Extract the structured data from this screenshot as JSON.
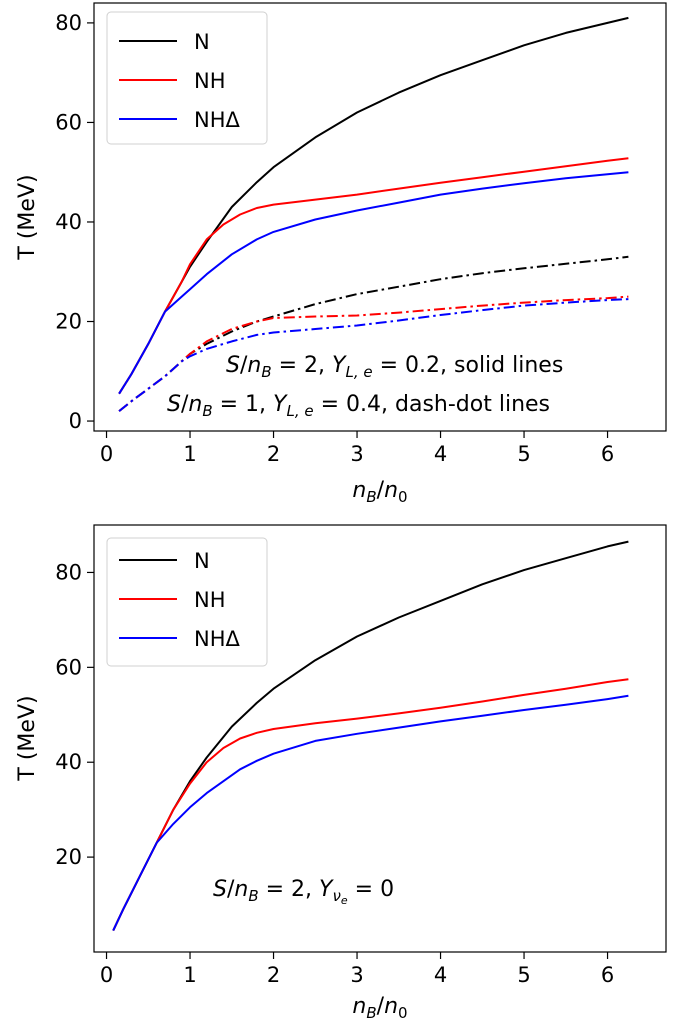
{
  "chart_data": [
    {
      "type": "line",
      "xlabel": "n_B/n_0",
      "ylabel": "T (MeV)",
      "xlim": [
        -0.15,
        6.7
      ],
      "ylim": [
        -2,
        84
      ],
      "xticks": [
        0,
        1,
        2,
        3,
        4,
        5,
        6
      ],
      "yticks": [
        0,
        20,
        40,
        60,
        80
      ],
      "legend_position": "top-left",
      "legend": [
        "N",
        "NH",
        "NHΔ"
      ],
      "annotations": [
        "S/n_B = 2, Y_{L,e} = 0.2, solid lines",
        "S/n_B = 1, Y_{L,e} = 0.4, dash-dot lines"
      ],
      "series": [
        {
          "name": "N",
          "color": "#000000",
          "style": "solid",
          "x": [
            0.15,
            0.3,
            0.5,
            0.7,
            0.9,
            1.0,
            1.2,
            1.5,
            1.8,
            2.0,
            2.5,
            3.0,
            3.5,
            4.0,
            4.5,
            5.0,
            5.5,
            6.0,
            6.25
          ],
          "y": [
            5.5,
            9.5,
            15.5,
            22.0,
            28.0,
            31.0,
            36.0,
            43.0,
            48.0,
            51.0,
            57.0,
            62.0,
            66.0,
            69.5,
            72.5,
            75.5,
            78.0,
            80.0,
            81.0
          ]
        },
        {
          "name": "NH",
          "color": "#ff0000",
          "style": "solid",
          "x": [
            0.15,
            0.3,
            0.5,
            0.7,
            0.9,
            1.0,
            1.2,
            1.4,
            1.6,
            1.8,
            2.0,
            2.5,
            3.0,
            3.5,
            4.0,
            4.5,
            5.0,
            5.5,
            6.0,
            6.25
          ],
          "y": [
            5.5,
            9.5,
            15.5,
            22.0,
            28.0,
            31.5,
            36.5,
            39.5,
            41.5,
            42.8,
            43.5,
            44.5,
            45.5,
            46.7,
            47.9,
            49.0,
            50.1,
            51.2,
            52.3,
            52.8
          ]
        },
        {
          "name": "NHΔ",
          "color": "#0000ff",
          "style": "solid",
          "x": [
            0.15,
            0.3,
            0.5,
            0.7,
            0.9,
            1.0,
            1.2,
            1.5,
            1.8,
            2.0,
            2.5,
            3.0,
            3.5,
            4.0,
            4.5,
            5.0,
            5.5,
            6.0,
            6.25
          ],
          "y": [
            5.5,
            9.5,
            15.5,
            22.0,
            25.0,
            26.5,
            29.5,
            33.5,
            36.5,
            38.0,
            40.5,
            42.3,
            43.9,
            45.5,
            46.7,
            47.8,
            48.8,
            49.6,
            50.0
          ]
        },
        {
          "name": "",
          "color": "#000000",
          "style": "dashdot",
          "x": [
            0.15,
            0.3,
            0.5,
            0.7,
            0.9,
            1.0,
            1.2,
            1.5,
            1.8,
            2.0,
            2.5,
            3.0,
            3.5,
            4.0,
            4.5,
            5.0,
            5.5,
            6.0,
            6.25
          ],
          "y": [
            2.0,
            4.0,
            6.5,
            9.0,
            12.0,
            13.5,
            15.5,
            18.0,
            20.0,
            21.0,
            23.5,
            25.5,
            27.0,
            28.5,
            29.7,
            30.7,
            31.6,
            32.5,
            33.0
          ]
        },
        {
          "name": "",
          "color": "#ff0000",
          "style": "dashdot",
          "x": [
            0.15,
            0.3,
            0.5,
            0.7,
            0.9,
            1.0,
            1.2,
            1.5,
            1.8,
            2.0,
            2.5,
            3.0,
            3.5,
            4.0,
            4.5,
            5.0,
            5.5,
            6.0,
            6.25
          ],
          "y": [
            2.0,
            4.0,
            6.5,
            9.0,
            12.0,
            13.5,
            16.0,
            18.5,
            20.0,
            20.7,
            21.0,
            21.2,
            21.8,
            22.5,
            23.2,
            23.8,
            24.3,
            24.7,
            25.0
          ]
        },
        {
          "name": "",
          "color": "#0000ff",
          "style": "dashdot",
          "x": [
            0.15,
            0.3,
            0.5,
            0.7,
            0.9,
            1.0,
            1.2,
            1.5,
            1.8,
            2.0,
            2.5,
            3.0,
            3.5,
            4.0,
            4.5,
            5.0,
            5.5,
            6.0,
            6.25
          ],
          "y": [
            2.0,
            4.0,
            6.5,
            9.0,
            12.0,
            13.0,
            14.5,
            16.0,
            17.3,
            17.8,
            18.5,
            19.2,
            20.2,
            21.3,
            22.3,
            23.2,
            23.8,
            24.3,
            24.5
          ]
        }
      ]
    },
    {
      "type": "line",
      "xlabel": "n_B/n_0",
      "ylabel": "T (MeV)",
      "xlim": [
        -0.15,
        6.7
      ],
      "ylim": [
        0,
        90
      ],
      "xticks": [
        0,
        1,
        2,
        3,
        4,
        5,
        6
      ],
      "yticks": [
        20,
        40,
        60,
        80
      ],
      "legend_position": "top-left",
      "legend": [
        "N",
        "NH",
        "NHΔ"
      ],
      "annotations": [
        "S/n_B = 2, Y_{ν_e} = 0"
      ],
      "series": [
        {
          "name": "N",
          "color": "#000000",
          "style": "solid",
          "x": [
            0.08,
            0.2,
            0.4,
            0.6,
            0.8,
            1.0,
            1.2,
            1.5,
            1.8,
            2.0,
            2.5,
            3.0,
            3.5,
            4.0,
            4.5,
            5.0,
            5.5,
            6.0,
            6.25
          ],
          "y": [
            4.5,
            9.0,
            16.0,
            23.0,
            30.0,
            36.0,
            41.0,
            47.5,
            52.5,
            55.5,
            61.5,
            66.5,
            70.5,
            74.0,
            77.5,
            80.5,
            83.0,
            85.5,
            86.5
          ]
        },
        {
          "name": "NH",
          "color": "#ff0000",
          "style": "solid",
          "x": [
            0.08,
            0.2,
            0.4,
            0.6,
            0.8,
            1.0,
            1.2,
            1.4,
            1.6,
            1.8,
            2.0,
            2.5,
            3.0,
            3.5,
            4.0,
            4.5,
            5.0,
            5.5,
            6.0,
            6.25
          ],
          "y": [
            4.5,
            9.0,
            16.0,
            23.0,
            30.0,
            35.5,
            40.0,
            43.0,
            45.0,
            46.2,
            47.0,
            48.2,
            49.2,
            50.3,
            51.5,
            52.8,
            54.2,
            55.5,
            56.9,
            57.5
          ]
        },
        {
          "name": "NHΔ",
          "color": "#0000ff",
          "style": "solid",
          "x": [
            0.08,
            0.2,
            0.4,
            0.6,
            0.8,
            1.0,
            1.2,
            1.4,
            1.6,
            1.8,
            2.0,
            2.5,
            3.0,
            3.5,
            4.0,
            4.5,
            5.0,
            5.5,
            6.0,
            6.25
          ],
          "y": [
            4.5,
            9.0,
            16.0,
            23.0,
            27.0,
            30.5,
            33.5,
            36.0,
            38.5,
            40.3,
            41.8,
            44.5,
            46.0,
            47.3,
            48.6,
            49.8,
            51.0,
            52.1,
            53.3,
            54.0
          ]
        }
      ]
    }
  ]
}
